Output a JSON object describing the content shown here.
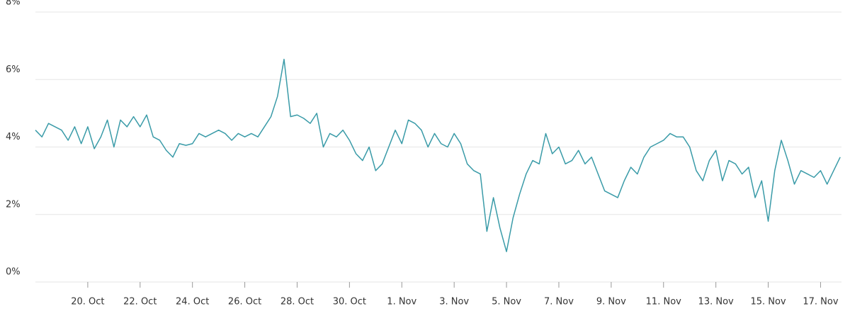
{
  "chart_data": {
    "type": "line",
    "x": [
      18,
      18.25,
      18.5,
      18.75,
      19,
      19.25,
      19.5,
      19.75,
      20,
      20.25,
      20.5,
      20.75,
      21,
      21.25,
      21.5,
      21.75,
      22,
      22.25,
      22.5,
      22.75,
      23,
      23.25,
      23.5,
      23.75,
      24,
      24.25,
      24.5,
      24.75,
      25,
      25.25,
      25.5,
      25.75,
      26,
      26.25,
      26.5,
      26.75,
      27,
      27.25,
      27.5,
      27.75,
      28,
      28.25,
      28.5,
      28.75,
      29,
      29.25,
      29.5,
      29.75,
      30,
      30.25,
      30.5,
      30.75,
      31,
      31.25,
      31.5,
      31.75,
      32,
      32.25,
      32.5,
      32.75,
      33,
      33.25,
      33.5,
      33.75,
      34,
      34.25,
      34.5,
      34.75,
      35,
      35.25,
      35.5,
      35.75,
      36,
      36.25,
      36.5,
      36.75,
      37,
      37.25,
      37.5,
      37.75,
      38,
      38.25,
      38.5,
      38.75,
      39,
      39.25,
      39.5,
      39.75,
      40,
      40.25,
      40.5,
      40.75,
      41,
      41.25,
      41.5,
      41.75,
      42,
      42.25,
      42.5,
      42.75,
      43,
      43.25,
      43.5,
      43.75,
      44,
      44.25,
      44.5,
      44.75,
      45,
      45.25,
      45.5,
      45.75,
      46,
      46.25,
      46.5,
      46.75,
      47,
      47.25,
      47.5,
      47.75,
      48,
      48.25,
      48.5,
      48.75
    ],
    "values": [
      4.5,
      4.3,
      4.7,
      4.6,
      4.5,
      4.2,
      4.6,
      4.1,
      4.6,
      3.95,
      4.3,
      4.8,
      4.0,
      4.8,
      4.6,
      4.9,
      4.6,
      4.95,
      4.3,
      4.2,
      3.9,
      3.7,
      4.1,
      4.05,
      4.1,
      4.4,
      4.3,
      4.4,
      4.5,
      4.4,
      4.2,
      4.4,
      4.3,
      4.4,
      4.3,
      4.6,
      4.9,
      5.5,
      6.6,
      4.9,
      4.95,
      4.85,
      4.7,
      5.0,
      4.0,
      4.4,
      4.3,
      4.5,
      4.2,
      3.8,
      3.6,
      4.0,
      3.3,
      3.5,
      4.0,
      4.5,
      4.1,
      4.8,
      4.7,
      4.5,
      4.0,
      4.4,
      4.1,
      4.0,
      4.4,
      4.1,
      3.5,
      3.3,
      3.2,
      1.5,
      2.5,
      1.6,
      0.9,
      1.9,
      2.6,
      3.2,
      3.6,
      3.5,
      4.4,
      3.8,
      4.0,
      3.5,
      3.6,
      3.9,
      3.5,
      3.7,
      3.2,
      2.7,
      2.6,
      2.5,
      3.0,
      3.4,
      3.2,
      3.7,
      4.0,
      4.1,
      4.2,
      4.4,
      4.3,
      4.3,
      4.0,
      3.3,
      3.0,
      3.6,
      3.9,
      3.0,
      3.6,
      3.5,
      3.2,
      3.4,
      2.5,
      3.0,
      1.8,
      3.3,
      4.2,
      3.6,
      2.9,
      3.3,
      3.2,
      3.1,
      3.3,
      2.9,
      3.3,
      3.7
    ],
    "color": "#3a9ba8",
    "xlim": [
      18,
      48.8
    ],
    "xticks": [
      {
        "value": 20,
        "label": "20. Oct"
      },
      {
        "value": 22,
        "label": "22. Oct"
      },
      {
        "value": 24,
        "label": "24. Oct"
      },
      {
        "value": 26,
        "label": "26. Oct"
      },
      {
        "value": 28,
        "label": "28. Oct"
      },
      {
        "value": 30,
        "label": "30. Oct"
      },
      {
        "value": 32,
        "label": "1. Nov"
      },
      {
        "value": 34,
        "label": "3. Nov"
      },
      {
        "value": 36,
        "label": "5. Nov"
      },
      {
        "value": 38,
        "label": "7. Nov"
      },
      {
        "value": 40,
        "label": "9. Nov"
      },
      {
        "value": 42,
        "label": "11. Nov"
      },
      {
        "value": 44,
        "label": "13. Nov"
      },
      {
        "value": 46,
        "label": "15. Nov"
      },
      {
        "value": 48,
        "label": "17. Nov"
      }
    ],
    "ylim": [
      0,
      8
    ],
    "yticks": [
      {
        "value": 0,
        "label": "0%"
      },
      {
        "value": 2,
        "label": "2%"
      },
      {
        "value": 4,
        "label": "4%"
      },
      {
        "value": 6,
        "label": "6%"
      },
      {
        "value": 8,
        "label": "8%"
      }
    ],
    "grid": true
  }
}
